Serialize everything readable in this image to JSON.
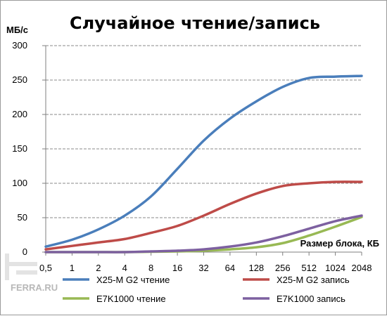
{
  "chart_data": {
    "type": "line",
    "title": "Случайное чтение/запись",
    "ylabel": "МБ/с",
    "xlabel": "Размер блока, КБ",
    "ylim": [
      0,
      300
    ],
    "yticks": [
      "0",
      "50",
      "100",
      "150",
      "200",
      "250",
      "300"
    ],
    "categories": [
      "0,5",
      "1",
      "2",
      "4",
      "8",
      "16",
      "32",
      "64",
      "128",
      "256",
      "512",
      "1024",
      "2048"
    ],
    "grid": true,
    "legend_position": "bottom",
    "series": [
      {
        "name": "X25-M G2 чтение",
        "color": "#4a7ebb",
        "values": [
          8,
          18,
          33,
          53,
          81,
          121,
          162,
          194,
          219,
          240,
          253,
          255,
          256
        ]
      },
      {
        "name": "X25-M G2 запись",
        "color": "#be4b48",
        "values": [
          4,
          9,
          14,
          19,
          28,
          38,
          53,
          70,
          85,
          96,
          100,
          102,
          102
        ]
      },
      {
        "name": "E7K1000 чтение",
        "color": "#98b954",
        "values": [
          0,
          0,
          0,
          0,
          0.5,
          1,
          2,
          4,
          7,
          13,
          24,
          37,
          51
        ]
      },
      {
        "name": "E7K1000 запись",
        "color": "#7d60a0",
        "values": [
          0,
          0,
          0,
          0,
          1,
          2,
          4,
          8,
          14,
          23,
          34,
          45,
          53
        ]
      }
    ]
  },
  "watermark": {
    "text": "FERRA.RU"
  }
}
